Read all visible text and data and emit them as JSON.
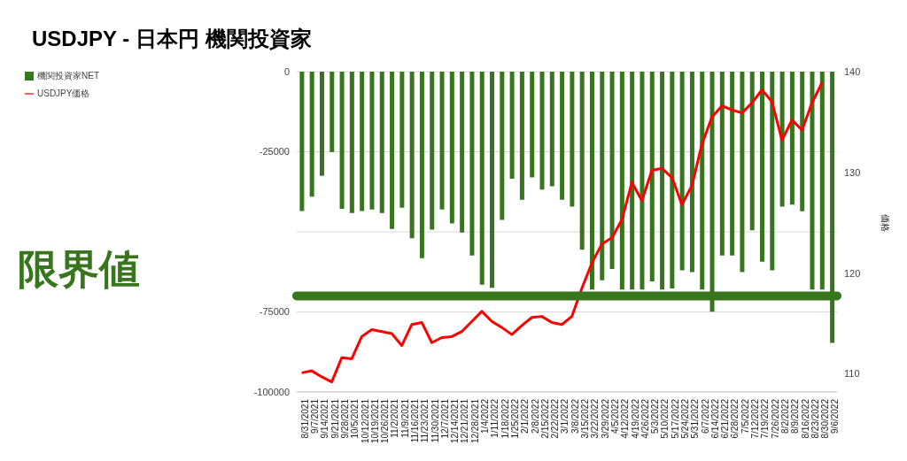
{
  "chart_data": {
    "type": "bar",
    "title": "USDJPY - 日本円 機関投資家",
    "y2label": "価格",
    "categories": [
      "8/31/2021",
      "9/7/2021",
      "9/14/2021",
      "9/21/2021",
      "9/28/2021",
      "10/5/2021",
      "10/12/2021",
      "10/19/2021",
      "10/26/2021",
      "11/2/2021",
      "11/9/2021",
      "11/16/2021",
      "11/23/2021",
      "11/30/2021",
      "12/7/2021",
      "12/14/2021",
      "12/21/2021",
      "12/28/2021",
      "1/4/2022",
      "1/11/2022",
      "1/18/2022",
      "1/25/2022",
      "2/1/2022",
      "2/8/2022",
      "2/15/2022",
      "2/22/2022",
      "3/1/2022",
      "3/8/2022",
      "3/15/2022",
      "3/22/2022",
      "3/29/2022",
      "4/5/2022",
      "4/12/2022",
      "4/19/2022",
      "4/26/2022",
      "5/3/2022",
      "5/10/2022",
      "5/17/2022",
      "5/24/2022",
      "5/31/2022",
      "6/7/2022",
      "6/14/2022",
      "6/21/2022",
      "6/28/2022",
      "7/5/2022",
      "7/12/2022",
      "7/19/2022",
      "7/26/2022",
      "8/2/2022",
      "8/9/2022",
      "8/16/2022",
      "8/23/2022",
      "8/30/2022",
      "9/6/2022"
    ],
    "series": [
      {
        "name": "機関投資家NET",
        "color": "#38761d",
        "values": [
          -43500,
          -39000,
          -32500,
          -25100,
          -42800,
          -44100,
          -43500,
          -43000,
          -44100,
          -49100,
          -42500,
          -52000,
          -58200,
          -49300,
          -43000,
          -47400,
          -50200,
          -57400,
          -66500,
          -67500,
          -46300,
          -33400,
          -40000,
          -33000,
          -36800,
          -35800,
          -40000,
          -42100,
          -55600,
          -68000,
          -65100,
          -61600,
          -68000,
          -68000,
          -68000,
          -65500,
          -68000,
          -67700,
          -62000,
          -62600,
          -68000,
          -74900,
          -57400,
          -57400,
          -62600,
          -49500,
          -59300,
          -62000,
          -42100,
          -41500,
          -43600,
          -68000,
          -68000,
          -84700
        ]
      },
      {
        "name": "USDJPY価格",
        "type": "line",
        "axis": "y2",
        "color": "#ff0000",
        "values": [
          110.1,
          110.3,
          109.7,
          109.2,
          111.6,
          111.5,
          113.7,
          114.4,
          114.2,
          114.0,
          112.8,
          114.9,
          115.1,
          113.1,
          113.6,
          113.7,
          114.2,
          115.2,
          116.2,
          115.2,
          114.6,
          113.9,
          114.8,
          115.6,
          115.7,
          115.1,
          114.9,
          115.7,
          118.5,
          121.0,
          122.9,
          123.5,
          125.3,
          129.0,
          127.2,
          130.2,
          130.4,
          129.5,
          126.8,
          128.7,
          132.8,
          135.5,
          136.6,
          136.2,
          135.9,
          136.9,
          138.2,
          137.0,
          133.2,
          135.2,
          134.2,
          136.9,
          138.9,
          null
        ]
      }
    ],
    "ylim": [
      -100000,
      0
    ],
    "yticks": [
      -100000,
      -75000,
      {
        "value": -50000,
        "label": null
      },
      -25000,
      0
    ],
    "y2lim": [
      108.2,
      140
    ],
    "y2ticks": [
      110,
      120,
      130,
      140
    ],
    "ref_lines": [
      {
        "axis": "y",
        "value": -70000,
        "label": "限界値",
        "color": "#38761d"
      }
    ],
    "grid": "y",
    "legend": "top left"
  }
}
